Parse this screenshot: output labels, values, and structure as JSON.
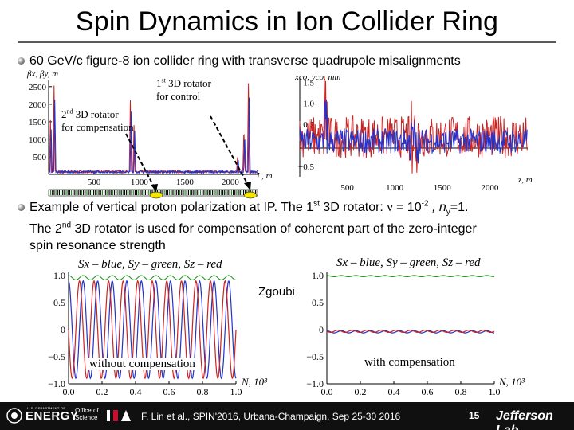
{
  "slide": {
    "title": "Spin Dynamics in Ion Collider Ring",
    "bullet1": "60 GeV/c figure-8 ion collider ring with transverse quadrupole misalignments",
    "bullet2": {
      "part1": "Example of vertical proton polarization at IP. The 1",
      "part1_sup": "st",
      "part2": " 3D rotator: ",
      "nu": "ν",
      "part3": " = 10",
      "exp": "-2",
      "part4": " , n",
      "sub": "y",
      "part5": "=1.",
      "line2_a": "The 2",
      "line2_sup": "nd",
      "line2_b": " 3D rotator is used for compensation of coherent part of the zero-integer",
      "line3": "spin resonance strength"
    }
  },
  "annotations": {
    "rot1_num": "1",
    "rot1_sup": "st",
    "rot1_line1": " 3D rotator",
    "rot1_line2": "for control",
    "rot2_num": "2",
    "rot2_sup": "nd",
    "rot2_line1": " 3D rotator",
    "rot2_line2": "for compensation",
    "zgoubi": "Zgoubi",
    "without": "without compensation",
    "with": "with compensation"
  },
  "chart_data": [
    {
      "type": "line",
      "ylabel": "βx, βy, m",
      "xlabel": "L, m",
      "x_ticks": [
        "500",
        "1000",
        "1500",
        "2000"
      ],
      "y_ticks": [
        "2500",
        "2000",
        "1500",
        "1000",
        "500"
      ],
      "xlim": [
        0,
        2300
      ],
      "ylim": [
        0,
        2700
      ],
      "series": [
        {
          "name": "βx",
          "color": "#cc2222",
          "description": "red"
        },
        {
          "name": "βy",
          "color": "#2233cc",
          "description": "blue"
        }
      ],
      "peaks": [
        {
          "x": 20,
          "y": 1500
        },
        {
          "x": 60,
          "y": 2500
        },
        {
          "x": 900,
          "y": 2100
        },
        {
          "x": 940,
          "y": 1400
        },
        {
          "x": 2080,
          "y": 450
        },
        {
          "x": 2150,
          "y": 1300
        },
        {
          "x": 2200,
          "y": 2550
        }
      ]
    },
    {
      "type": "line",
      "ylabel": "xco, yco, mm",
      "xlabel": "z, m",
      "x_ticks": [
        "500",
        "1000",
        "1500",
        "2000"
      ],
      "y_ticks": [
        "1.5",
        "1.0",
        "0.5",
        "0",
        "−0.5"
      ],
      "xlim": [
        0,
        2400
      ],
      "ylim": [
        -0.75,
        1.6
      ],
      "series": [
        {
          "name": "xco",
          "color": "#cc2222"
        },
        {
          "name": "yco",
          "color": "#2233cc"
        }
      ]
    },
    {
      "type": "line",
      "title": "Sx – blue, Sy – green, Sz – red",
      "xlabel": "N, 10³",
      "x_ticks": [
        "0.0",
        "0.2",
        "0.4",
        "0.6",
        "0.8",
        "1.0"
      ],
      "y_ticks": [
        "1.0",
        "0.5",
        "0",
        "−0.5",
        "−1.0"
      ],
      "xlim": [
        0,
        1.0
      ],
      "ylim": [
        -1.0,
        1.0
      ],
      "series": [
        {
          "name": "Sx",
          "color": "#2233cc",
          "amplitude": 0.9,
          "center": 0,
          "cycles": 11.5
        },
        {
          "name": "Sy",
          "color": "#1a8c1a",
          "amplitude": 0.04,
          "center": 0.96,
          "cycles": 11.5
        },
        {
          "name": "Sz",
          "color": "#cc2222",
          "amplitude": 0.9,
          "center": 0,
          "cycles": 11.5
        }
      ]
    },
    {
      "type": "line",
      "title": "Sx – blue, Sy – green, Sz – red",
      "xlabel": "N, 10³",
      "x_ticks": [
        "0.0",
        "0.2",
        "0.4",
        "0.6",
        "0.8",
        "1.0"
      ],
      "y_ticks": [
        "1.0",
        "0.5",
        "0",
        "−0.5",
        "−1.0"
      ],
      "xlim": [
        0,
        1.0
      ],
      "ylim": [
        -1.0,
        1.0
      ],
      "series": [
        {
          "name": "Sx",
          "color": "#2233cc",
          "amplitude": 0.02,
          "center": -0.04,
          "cycles": 11.5
        },
        {
          "name": "Sy",
          "color": "#1a8c1a",
          "amplitude": 0.01,
          "center": 0.99,
          "cycles": 11.5
        },
        {
          "name": "Sz",
          "color": "#cc2222",
          "amplitude": 0.02,
          "center": -0.03,
          "cycles": 11.5
        }
      ]
    }
  ],
  "footer": {
    "citation": "F. Lin et al., SPIN'2016, Urbana-Champaign, Sep 25-30 2016",
    "page": "15",
    "doe_small": "U.S. DEPARTMENT OF",
    "doe": "ENERGY",
    "office_line1": "Office of",
    "office_line2": "Science",
    "jlab": "Jefferson Lab"
  }
}
